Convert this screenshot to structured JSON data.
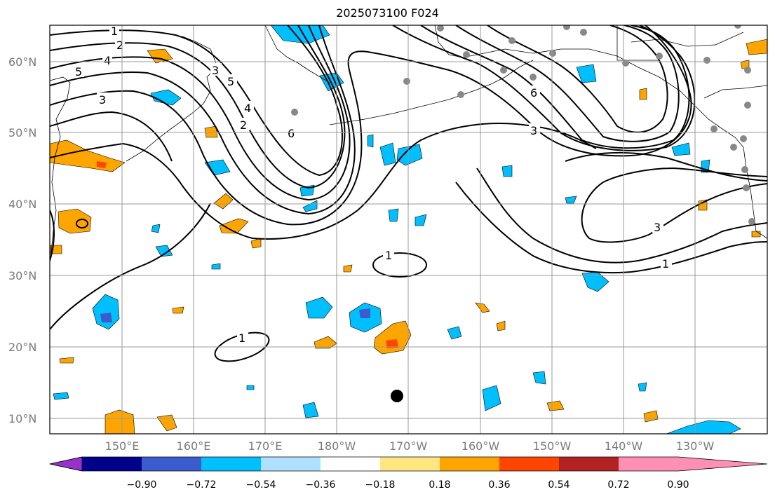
{
  "title": "2025073100 F024",
  "lat_labels": [
    "60°N",
    "50°N",
    "40°N",
    "30°N",
    "20°N",
    "10°N"
  ],
  "lon_labels": [
    "150°E",
    "160°E",
    "170°E",
    "180°W",
    "170°W",
    "160°W",
    "150°W",
    "140°W",
    "130°W"
  ],
  "colorbar": {
    "ticks": [
      "−0.90",
      "−0.72",
      "−0.54",
      "−0.36",
      "−0.18",
      "0.18",
      "0.36",
      "0.54",
      "0.72",
      "0.90"
    ],
    "colors": [
      "#9932cc",
      "#00008b",
      "#3a5ccc",
      "#00bfff",
      "#b0e0ff",
      "#ffffff",
      "#ffe680",
      "#ffa500",
      "#ff4500",
      "#b22222",
      "#ff8fb4"
    ]
  },
  "contour_labels": [
    "5",
    "4",
    "3",
    "2",
    "1",
    "6",
    "1",
    "1",
    "3",
    "1",
    "6",
    "3",
    "5",
    "4",
    "3",
    "2"
  ],
  "colors": {
    "positive": "#ffa500",
    "negative": "#00bfff",
    "strong_negative": "#3a5ccc",
    "strong_positive": "#ff4500",
    "station": "#888888",
    "grid": "#9a9a9a"
  }
}
